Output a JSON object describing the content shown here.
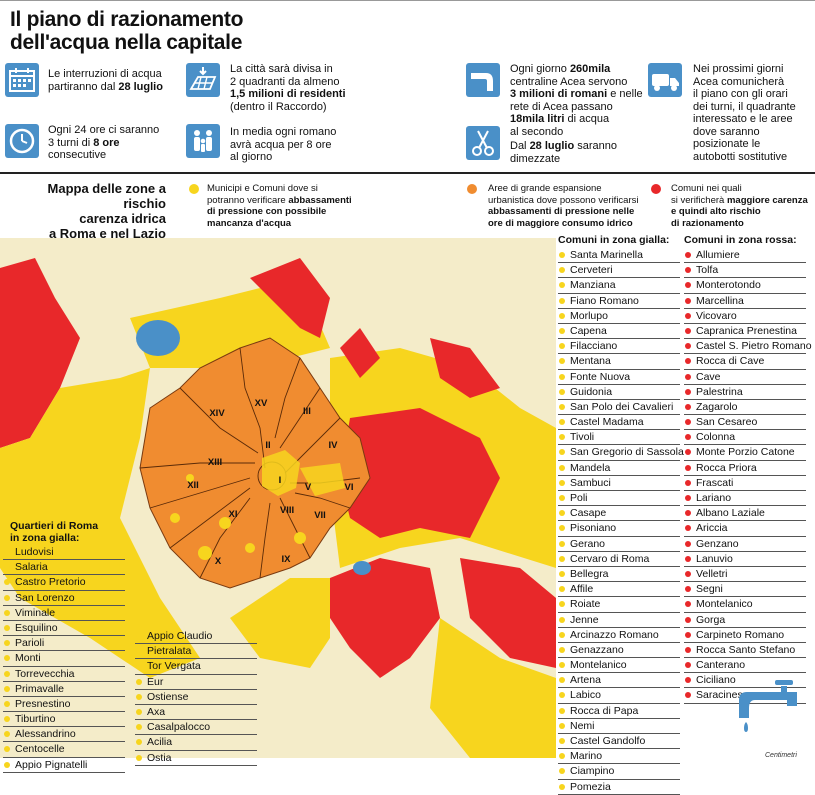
{
  "title_line1": "Il piano di razionamento",
  "title_line2": "dell'acqua nella capitale",
  "info": {
    "i1": [
      "Le interruzioni di acqua",
      "partiranno dal ",
      "28 luglio"
    ],
    "i2": [
      "Ogni 24 ore ci saranno",
      "3 turni di ",
      "8 ore",
      "consecutive"
    ],
    "i3": [
      "La città sarà divisa in",
      "2 quadranti da almeno",
      "1,5 milioni di residenti",
      "(dentro il Raccordo)"
    ],
    "i4": [
      "In media ogni romano",
      "avrà acqua per 8 ore",
      "al giorno"
    ],
    "i5": [
      "Ogni giorno ",
      "260mila",
      "centraline Acea servono",
      "3 milioni di romani",
      " e nelle",
      "rete di Acea passano",
      "18mila litri",
      " di acqua",
      "al secondo"
    ],
    "i6": [
      "Dal ",
      "28 luglio",
      " saranno",
      "dimezzate"
    ],
    "i7": [
      "Nei prossimi giorni",
      "Acea comunicherà",
      "il piano con gli orari",
      "dei turni, il quadrante",
      "interessato e le aree",
      "dove saranno",
      "posizionate le",
      "autobotti sostitutive"
    ]
  },
  "legend": {
    "title": [
      "Mappa delle zone a rischio",
      "carenza idrica",
      "a Roma e nel Lazio"
    ],
    "yellow": [
      "Municipi e Comuni dove si",
      "potranno verificare ",
      "abbassamenti",
      "di pressione con possibile",
      "mancanza d'acqua"
    ],
    "orange": [
      "Aree di grande espansione",
      "urbanistica dove possono verificarsi",
      "abbassamenti di pressione nelle",
      "ore di maggiore consumo idrico"
    ],
    "red": [
      "Comuni nei quali",
      "si verificherà ",
      "maggiore carenza",
      "e quindi alto rischio",
      "di razionamento"
    ]
  },
  "colors": {
    "yellow": "#f7d51e",
    "orange": "#f08c30",
    "red": "#e8282a",
    "lightbg": "#f4ecc9",
    "blue": "#4a90c8"
  },
  "icons": [
    "calendar-icon",
    "clock-icon",
    "grid-map-icon",
    "family-icon",
    "tap-icon",
    "scissors-icon",
    "truck-icon",
    "faucet-icon"
  ],
  "municipi": [
    "I",
    "II",
    "III",
    "IV",
    "V",
    "VI",
    "VII",
    "VIII",
    "IX",
    "X",
    "XI",
    "XII",
    "XIII",
    "XIV",
    "XV"
  ],
  "quartieri": {
    "header": [
      "Quartieri di Roma",
      "in zona gialla:"
    ],
    "col1": [
      "Ludovisi",
      "Salaria",
      "Castro Pretorio",
      "San Lorenzo",
      "Viminale",
      "Esquilino",
      "Parioli",
      "Monti",
      "Torrevecchia",
      "Primavalle",
      "Presnestino",
      "Tiburtino",
      "Alessandrino",
      "Centocelle",
      "Appio Pignatelli"
    ],
    "col2": [
      "Appio Claudio",
      "Pietralata",
      "Tor Vergata",
      "Eur",
      "Ostiense",
      "Axa",
      "Casalpalocco",
      "Acilia",
      "Ostia"
    ]
  },
  "gialla": {
    "header": "Comuni in zona gialla:",
    "items": [
      "Santa Marinella",
      "Cerveteri",
      "Manziana",
      "Fiano Romano",
      "Morlupo",
      "Capena",
      "Filacciano",
      "Mentana",
      "Fonte Nuova",
      "Guidonia",
      "San Polo dei Cavalieri",
      "Castel Madama",
      "Tivoli",
      "San Gregorio di Sassola",
      "Mandela",
      "Sambuci",
      "Poli",
      "Casape",
      "Pisoniano",
      "Gerano",
      "Cervaro di Roma",
      "Bellegra",
      "Affile",
      "Roiate",
      "Jenne",
      "Arcinazzo Romano",
      "Genazzano",
      "Montelanico",
      "Artena",
      "Labico",
      "Rocca di Papa",
      "Nemi",
      "Castel Gandolfo",
      "Marino",
      "Ciampino",
      "Pomezia"
    ]
  },
  "rossa": {
    "header": "Comuni in zona rossa:",
    "items": [
      "Allumiere",
      "Tolfa",
      "Monterotondo",
      "Marcellina",
      "Vicovaro",
      "Capranica Prenestina",
      "Castel S. Pietro Romano",
      "Rocca di Cave",
      "Cave",
      "Palestrina",
      "Zagarolo",
      "San Cesareo",
      "Colonna",
      "Monte Porzio Catone",
      "Rocca Priora",
      "Frascati",
      "Lariano",
      "Albano Laziale",
      "Ariccia",
      "Genzano",
      "Lanuvio",
      "Velletri",
      "Segni",
      "Montelanico",
      "Gorga",
      "Carpineto Romano",
      "Rocca Santo Stefano",
      "Canterano",
      "Ciciliano",
      "Saracinesco"
    ]
  },
  "credit": "Centimetri"
}
